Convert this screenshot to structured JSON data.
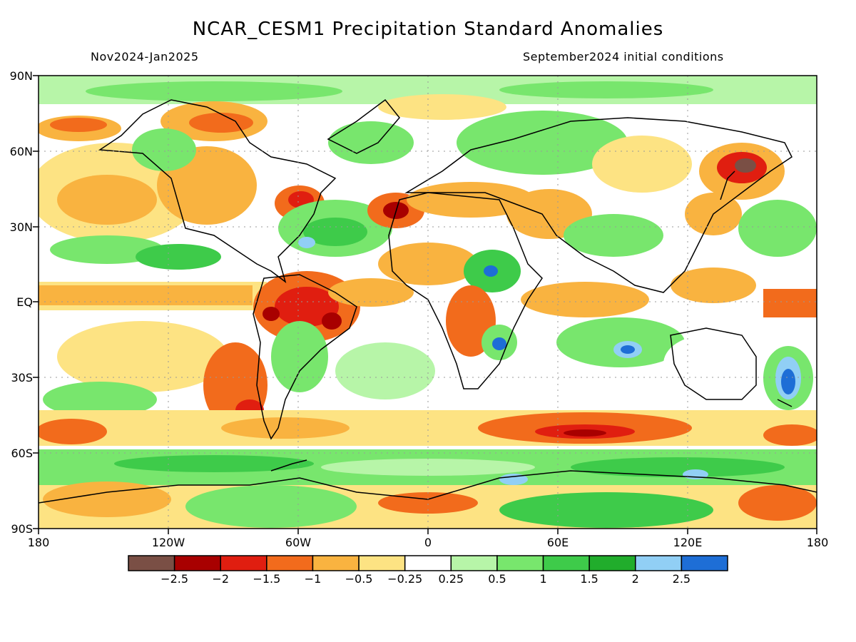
{
  "title": "NCAR_CESM1 Precipitation Standard Anomalies",
  "period": "Nov2024-Jan2025",
  "initial_conditions": "September2024 initial conditions",
  "axes": {
    "lat_labels": [
      "90N",
      "60N",
      "30N",
      "EQ",
      "30S",
      "60S",
      "90S"
    ],
    "lon_labels": [
      "180",
      "120W",
      "60W",
      "0",
      "60E",
      "120E",
      "180"
    ]
  },
  "colorbar": {
    "colors": [
      "#7a4f45",
      "#a80000",
      "#e01e10",
      "#f26b1c",
      "#f9b340",
      "#fde383",
      "#ffffff",
      "#b7f5a8",
      "#78e66d",
      "#3ecb4a",
      "#21ad2c",
      "#91cff5",
      "#1e6ed6"
    ],
    "tick_labels": [
      "-2.5",
      "-2",
      "-1.5",
      "-1",
      "-0.5",
      "-0.25",
      "0.25",
      "0.5",
      "1",
      "1.5",
      "2",
      "2.5"
    ]
  }
}
